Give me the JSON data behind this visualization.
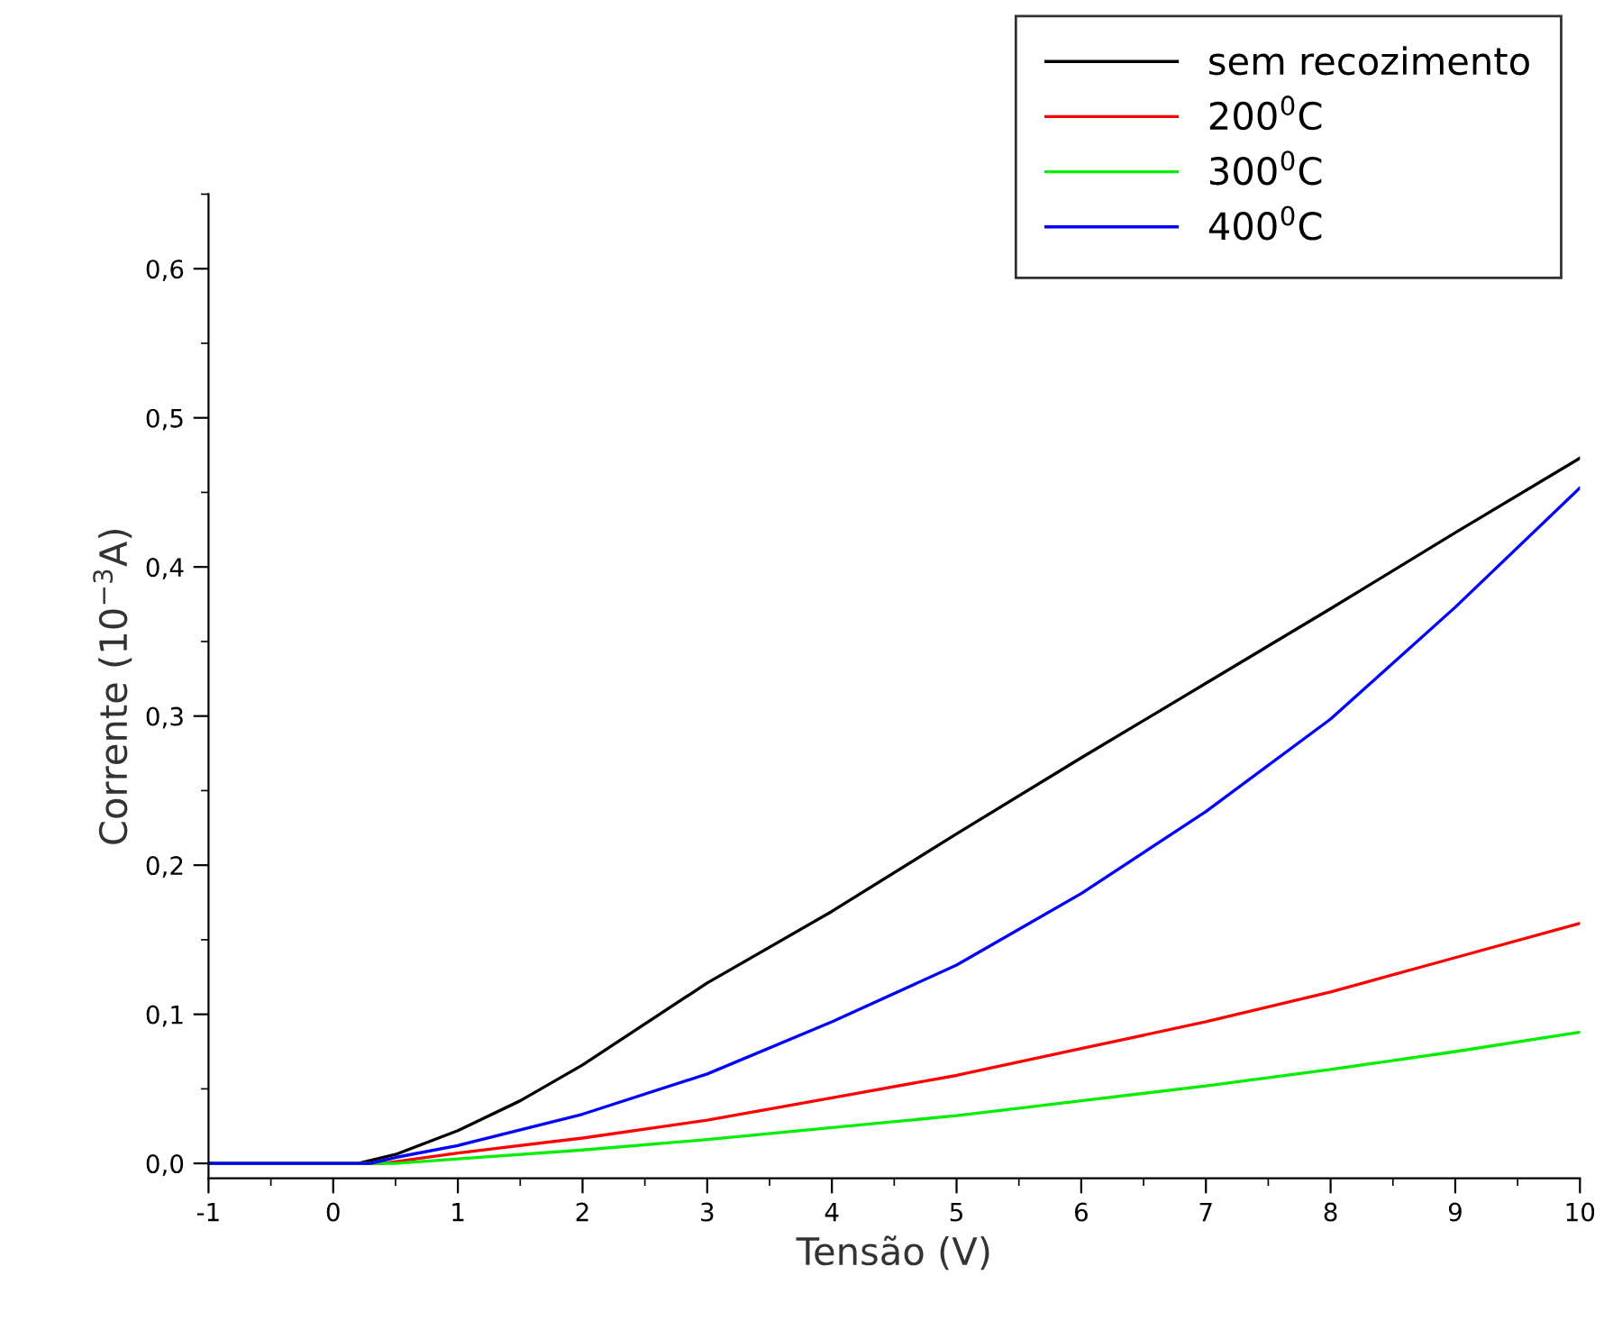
{
  "chart_data": {
    "type": "line",
    "xlabel": "Tensão (V)",
    "ylabel": "Corrente (10$^{−3}$A)",
    "xlim": [
      -1,
      10
    ],
    "ylim": [
      -0.01,
      0.65
    ],
    "xticks": [
      -1,
      {
        "value": -0.5,
        "label": null
      },
      0,
      {
        "value": 0.5,
        "label": null
      },
      1,
      {
        "value": 1.5,
        "label": null
      },
      2,
      {
        "value": 2.5,
        "label": null
      },
      3,
      {
        "value": 3.5,
        "label": null
      },
      4,
      {
        "value": 4.5,
        "label": null
      },
      5,
      {
        "value": 5.5,
        "label": null
      },
      6,
      {
        "value": 6.5,
        "label": null
      },
      7,
      {
        "value": 7.5,
        "label": null
      },
      8,
      {
        "value": 8.5,
        "label": null
      },
      9,
      {
        "value": 9.5,
        "label": null
      },
      10
    ],
    "yticks": [
      {
        "value": 0,
        "label": "0,0"
      },
      {
        "value": 0.05,
        "label": null
      },
      {
        "value": 0.1,
        "label": "0,1"
      },
      {
        "value": 0.15,
        "label": null
      },
      {
        "value": 0.2,
        "label": "0,2"
      },
      {
        "value": 0.25,
        "label": null
      },
      {
        "value": 0.3,
        "label": "0,3"
      },
      {
        "value": 0.35,
        "label": null
      },
      {
        "value": 0.4,
        "label": "0,4"
      },
      {
        "value": 0.45,
        "label": null
      },
      {
        "value": 0.5,
        "label": "0,5"
      },
      {
        "value": 0.55,
        "label": null
      },
      {
        "value": 0.6,
        "label": "0,6"
      },
      {
        "value": 0.65,
        "label": null
      }
    ],
    "grid": false,
    "legend": "top right",
    "marker": "none",
    "line_style": "solid",
    "series": [
      {
        "name": "sem recozimento",
        "color": "#000000",
        "x": [
          -1,
          0,
          0.2,
          0.5,
          1,
          1.5,
          2,
          3,
          4,
          5,
          6,
          7,
          8,
          9,
          10
        ],
        "values": [
          0,
          0,
          0,
          0.006,
          0.022,
          0.042,
          0.066,
          0.121,
          0.169,
          0.221,
          0.272,
          0.322,
          0.372,
          0.423,
          0.473
        ]
      },
      {
        "name": "200$^{0}$C",
        "color": "#ff0000",
        "x": [
          -1,
          0,
          0.4,
          1,
          2,
          3,
          4,
          5,
          6,
          7,
          8,
          9,
          10
        ],
        "values": [
          0,
          0,
          0,
          0.007,
          0.017,
          0.029,
          0.044,
          0.059,
          0.077,
          0.095,
          0.115,
          0.138,
          0.161
        ]
      },
      {
        "name": "300$^{0}$C",
        "color": "#00ee00",
        "x": [
          -1,
          0,
          0.5,
          1,
          2,
          3,
          4,
          5,
          6,
          7,
          8,
          9,
          10
        ],
        "values": [
          0,
          0,
          0,
          0.003,
          0.009,
          0.016,
          0.024,
          0.032,
          0.042,
          0.052,
          0.063,
          0.075,
          0.088
        ]
      },
      {
        "name": "400$^{0}$C",
        "color": "#0000ff",
        "x": [
          -1,
          0,
          0.3,
          0.5,
          1,
          2,
          3,
          4,
          5,
          6,
          7,
          8,
          9,
          10
        ],
        "values": [
          0,
          0,
          0,
          0.004,
          0.012,
          0.033,
          0.06,
          0.095,
          0.133,
          0.181,
          0.236,
          0.298,
          0.373,
          0.453
        ]
      }
    ]
  }
}
